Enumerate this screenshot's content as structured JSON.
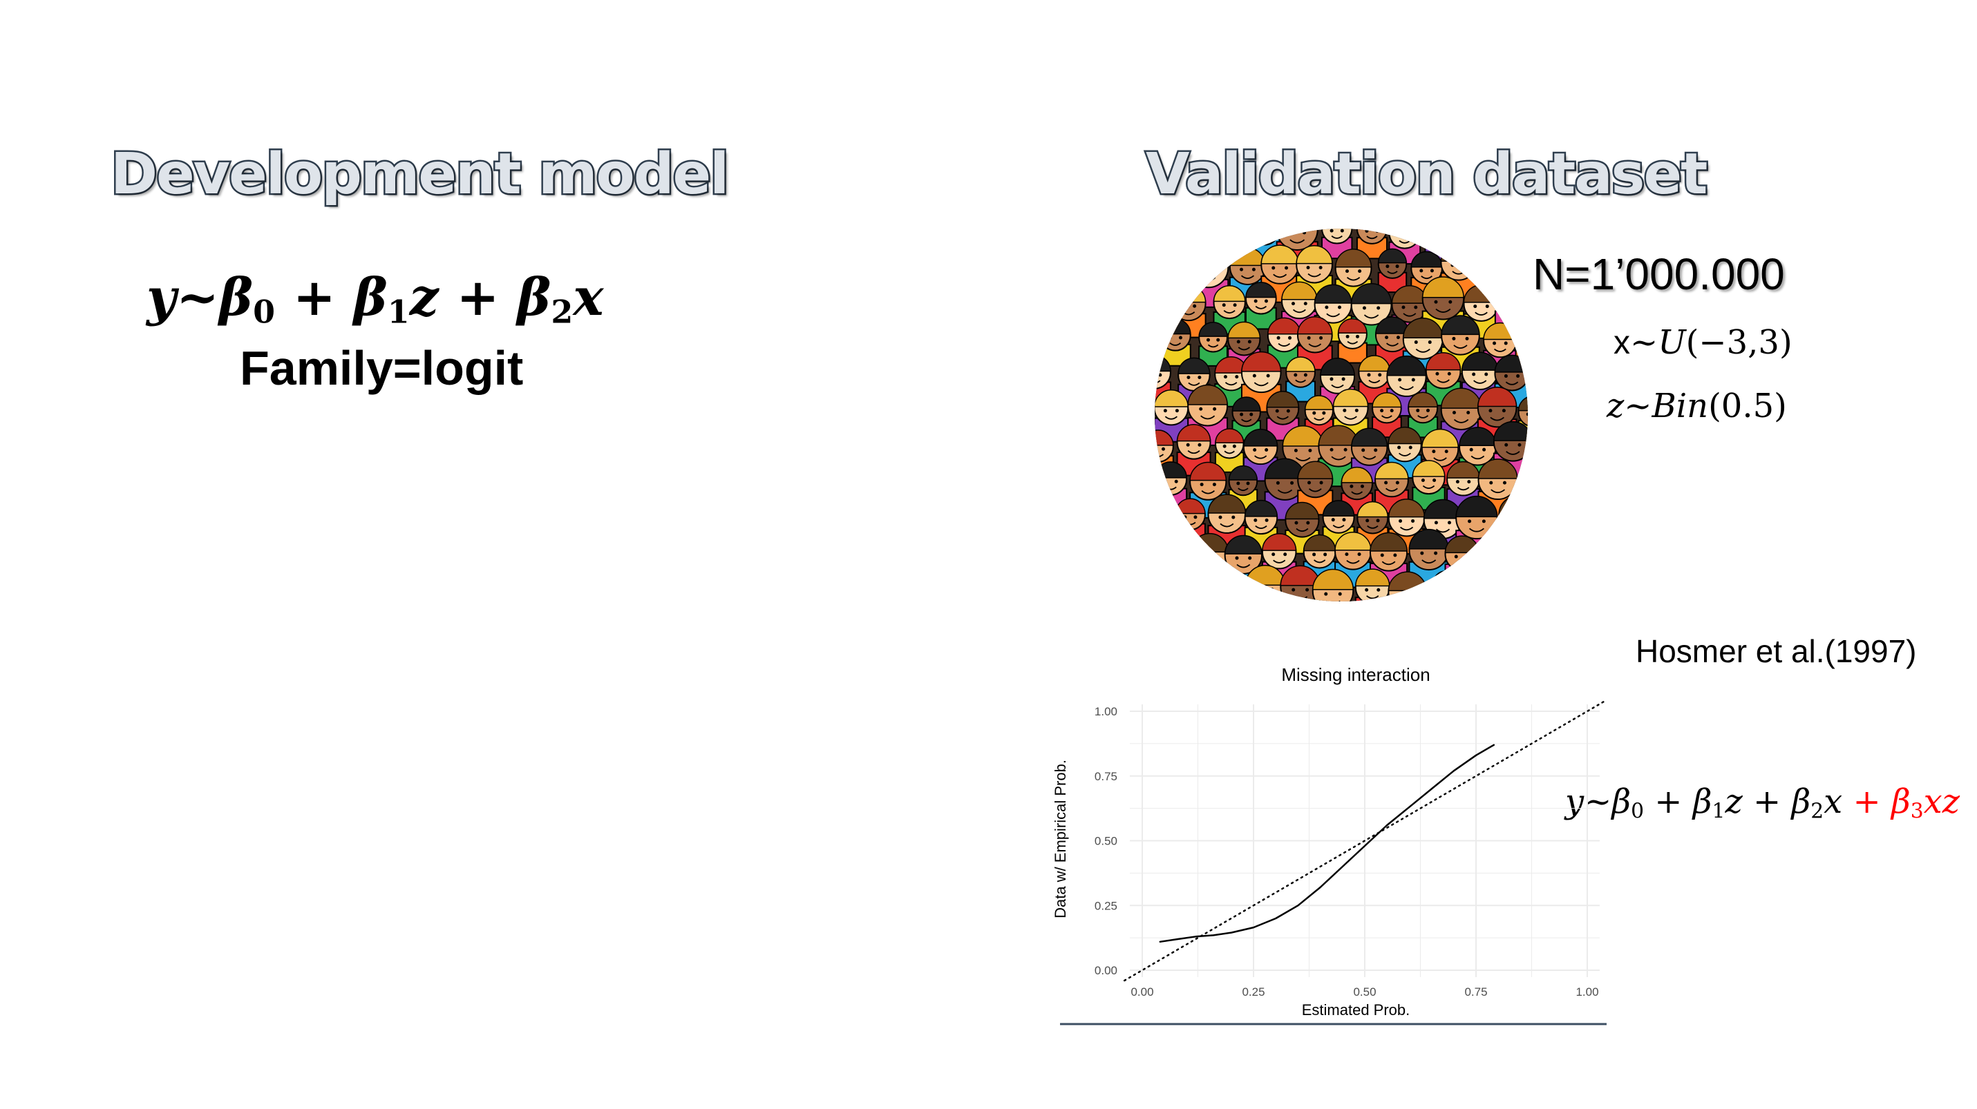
{
  "left": {
    "title": "Development model",
    "formula": {
      "y": "y",
      "tilde": "~",
      "b0": "β",
      "s0": "0",
      "plus1": "+",
      "b1": "β",
      "s1": "1",
      "z": "z",
      "plus2": "+",
      "b2": "β",
      "s2": "2",
      "x": "x"
    },
    "family": "Family=logit"
  },
  "right": {
    "title": "Validation dataset",
    "n_label": "N=1’000.000",
    "dist_x": {
      "var": "x",
      "tilde": "~",
      "dist": "U",
      "args": "(−3,3)"
    },
    "dist_z": {
      "var": "z",
      "tilde": "~",
      "dist": "Bin",
      "args": "(0.5)"
    },
    "citation": "Hosmer et al.(1997)",
    "true_model": {
      "y": "y",
      "tilde": "~",
      "b0": "β",
      "s0": "0",
      "plus1": " + ",
      "b1": "β",
      "s1": "1",
      "z": "z",
      "plus2": " + ",
      "b2": "β",
      "s2": "2",
      "x": "x",
      "plus3": " + ",
      "b3": "β",
      "s3": "3",
      "xz": "xz"
    },
    "true_model_highlight_color": "#ff0000"
  },
  "chart_data": {
    "type": "line",
    "title": "Missing interaction",
    "xlabel": "Estimated Prob.",
    "ylabel": "Data w/ Empirical Prob.",
    "xlim": [
      0,
      1
    ],
    "ylim": [
      0,
      1
    ],
    "x_ticks": [
      "0.00",
      "0.25",
      "0.50",
      "0.75",
      "1.00"
    ],
    "y_ticks": [
      "0.00",
      "0.25",
      "0.50",
      "0.75",
      "1.00"
    ],
    "grid": true,
    "series": [
      {
        "style": "solid",
        "x": [
          0.04,
          0.08,
          0.12,
          0.16,
          0.2,
          0.25,
          0.3,
          0.35,
          0.4,
          0.45,
          0.5,
          0.55,
          0.6,
          0.65,
          0.7,
          0.75,
          0.79
        ],
        "y": [
          0.11,
          0.12,
          0.13,
          0.135,
          0.145,
          0.165,
          0.2,
          0.25,
          0.32,
          0.4,
          0.48,
          0.56,
          0.63,
          0.7,
          0.77,
          0.83,
          0.87
        ]
      },
      {
        "style": "dotted",
        "x": [
          -0.04,
          1.04
        ],
        "y": [
          -0.04,
          1.04
        ]
      }
    ]
  },
  "colors": {
    "title_fill": "#dfe4ea",
    "title_stroke": "#2f3e4e",
    "rule": "#3d4f63",
    "grid": "#ebebeb",
    "axis_text": "#4d4d4d"
  }
}
